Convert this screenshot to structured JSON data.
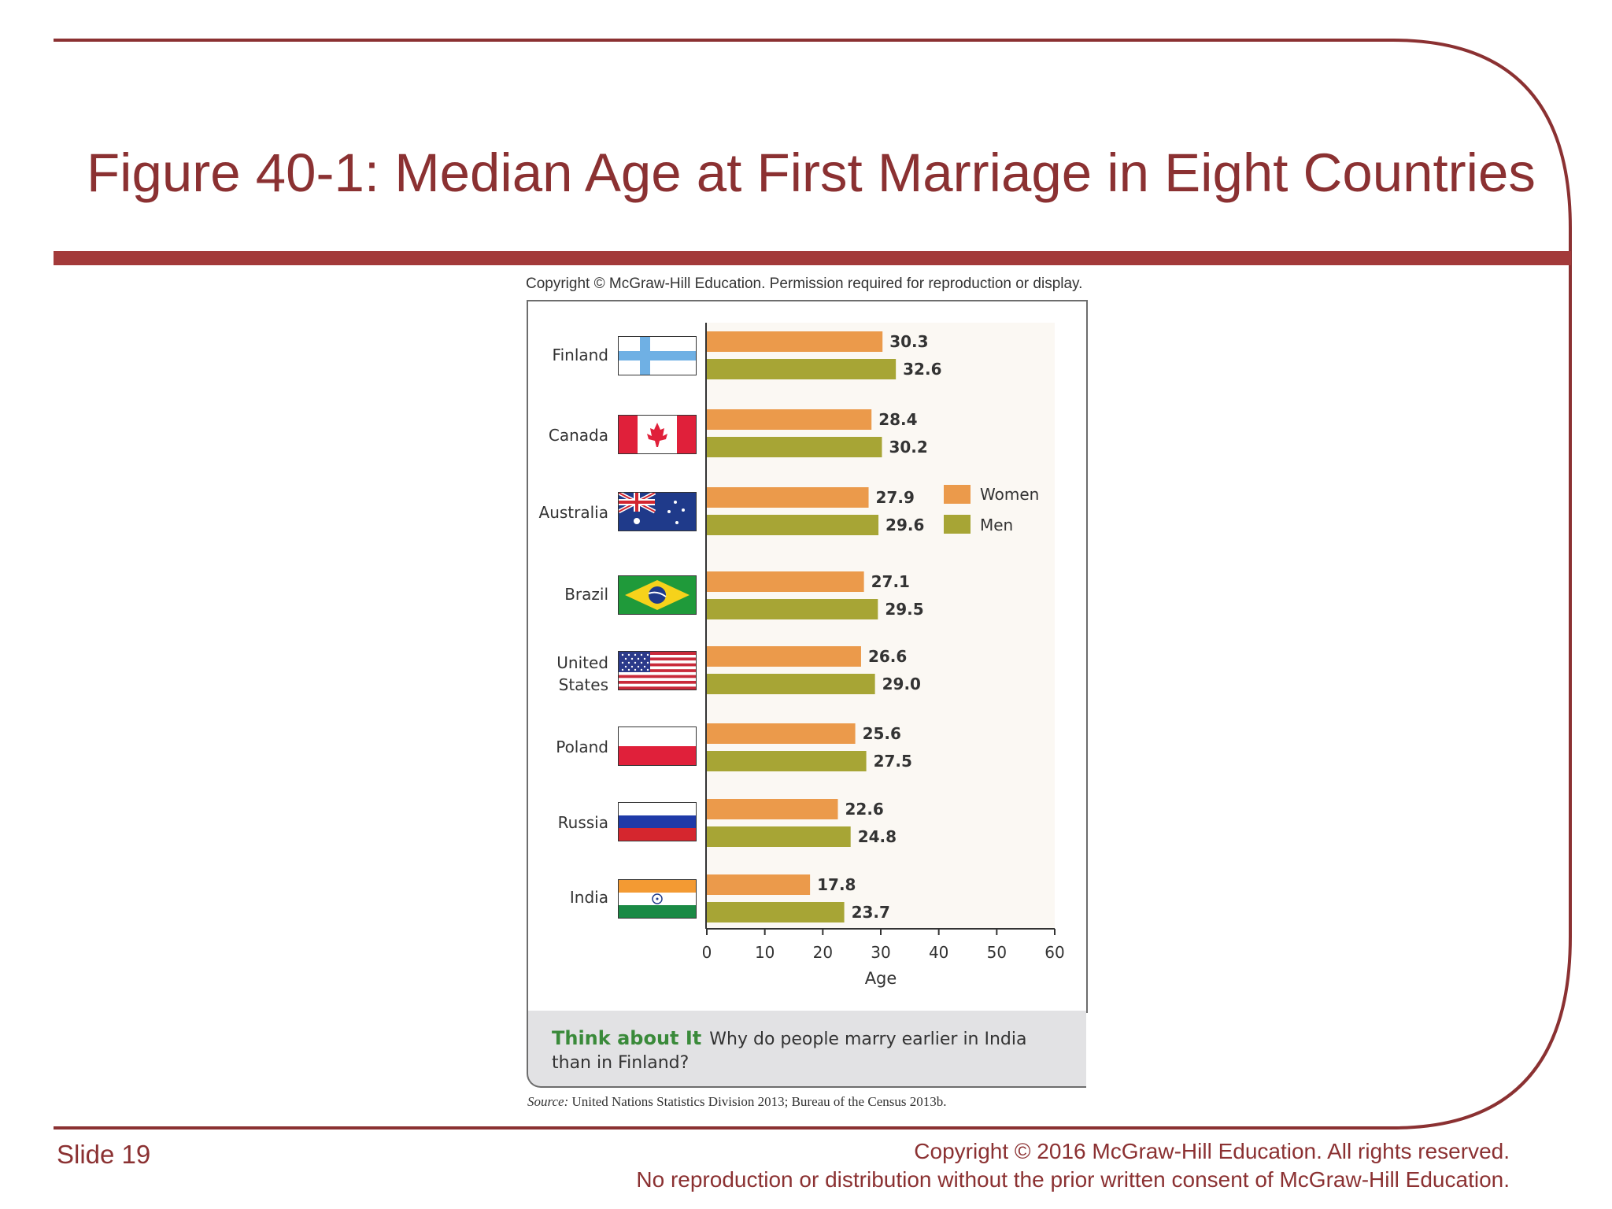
{
  "slide": {
    "title": "Figure 40-1: Median Age at First Marriage in Eight Countries",
    "copyright_top": "Copyright © McGraw-Hill Education. Permission required for reproduction or display.",
    "slide_number": "Slide 19",
    "copyright_line1": "Copyright © 2016 McGraw-Hill Education. All rights reserved.",
    "copyright_line2": "No reproduction or distribution without the prior written consent of McGraw-Hill Education.",
    "accent_color": "#8b3132"
  },
  "think": {
    "label": "Think about It",
    "question": "Why do people marry earlier in India than in Finland?"
  },
  "source": {
    "label": "Source:",
    "text": "United Nations Statistics Division 2013; Bureau of the Census 2013b."
  },
  "chart_data": {
    "type": "bar",
    "orientation": "horizontal",
    "categories": [
      "Finland",
      "Canada",
      "Australia",
      "Brazil",
      "United States",
      "Poland",
      "Russia",
      "India"
    ],
    "series": [
      {
        "name": "Women",
        "color": "#eb9a4b",
        "values": [
          30.3,
          28.4,
          27.9,
          27.1,
          26.6,
          25.6,
          22.6,
          17.8
        ],
        "labels": [
          "30.3",
          "28.4",
          "27.9",
          "27.1",
          "26.6",
          "25.6",
          "22.6",
          "17.8"
        ]
      },
      {
        "name": "Men",
        "color": "#a7a535",
        "values": [
          32.6,
          30.2,
          29.6,
          29.5,
          29.0,
          27.5,
          24.8,
          23.7
        ],
        "labels": [
          "32.6",
          "30.2",
          "29.6",
          "29.5",
          "29.0",
          "27.5",
          "24.8",
          "23.7"
        ]
      }
    ],
    "xlabel": "Age",
    "xlim": [
      0,
      60
    ],
    "xticks": [
      0,
      10,
      20,
      30,
      40,
      50,
      60
    ],
    "legend": "right of bars, upper middle",
    "grid": false
  }
}
